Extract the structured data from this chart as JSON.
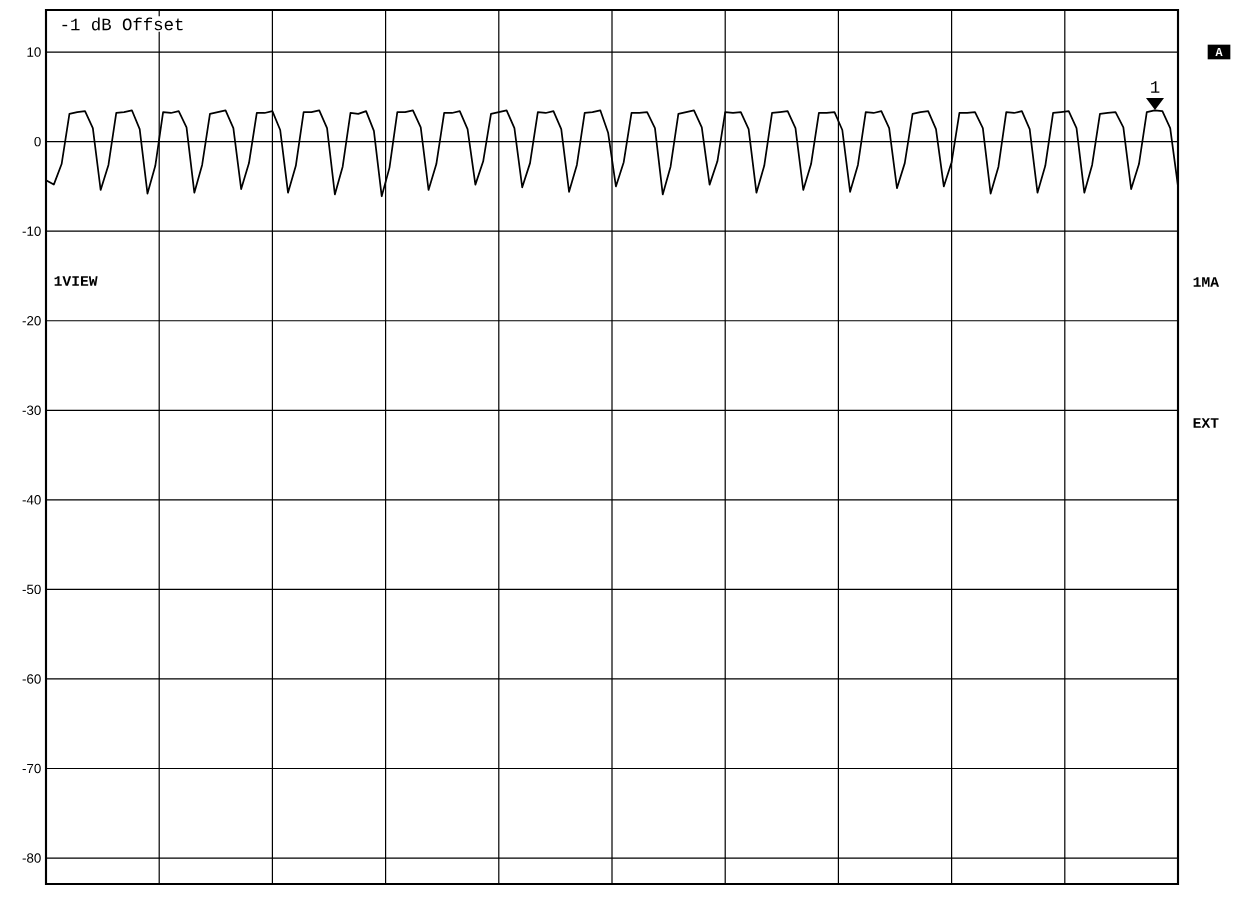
{
  "chart_data": {
    "type": "line",
    "categories": [
      null,
      null,
      null,
      null,
      null,
      null,
      null,
      null,
      null,
      null,
      null,
      null,
      null,
      null,
      null,
      null,
      null,
      null,
      null,
      null,
      null,
      null,
      null,
      null,
      null,
      null,
      null,
      null,
      null,
      null,
      null,
      null,
      null,
      null,
      null,
      null,
      null,
      null,
      null,
      null,
      null,
      null,
      null,
      null,
      null,
      null,
      null,
      null,
      null,
      null,
      null,
      null,
      null,
      null,
      null,
      null,
      null,
      null,
      null,
      null,
      null,
      null,
      null,
      null,
      null,
      null,
      null,
      null,
      null,
      null,
      null,
      null,
      null,
      null,
      null,
      null,
      null,
      null,
      null,
      null,
      null,
      null,
      null,
      null,
      null,
      null,
      null,
      null,
      null,
      null,
      null,
      null,
      null,
      null,
      null,
      null,
      null,
      null,
      null,
      null,
      null,
      null,
      null,
      null,
      null,
      null,
      null,
      null,
      null,
      null,
      null,
      null,
      null,
      null,
      null,
      null,
      null,
      null,
      null,
      null,
      null,
      null,
      null,
      null,
      null,
      null,
      null,
      null,
      null,
      null,
      null,
      null,
      null,
      null,
      null,
      null,
      null,
      null,
      null,
      null,
      null,
      null,
      null,
      null,
      null,
      null
    ],
    "values": [
      -4.3,
      -4.8,
      -2.5,
      3.1,
      3.3,
      3.4,
      1.5,
      -5.4,
      -2.6,
      3.2,
      3.3,
      3.5,
      1.4,
      -5.8,
      -2.7,
      3.3,
      3.2,
      3.4,
      1.6,
      -5.7,
      -2.6,
      3.1,
      3.3,
      3.5,
      1.5,
      -5.3,
      -2.4,
      3.2,
      3.2,
      3.4,
      1.3,
      -5.7,
      -2.7,
      3.3,
      3.3,
      3.5,
      1.5,
      -5.9,
      -2.8,
      3.2,
      3.1,
      3.4,
      1.2,
      -6.1,
      -2.9,
      3.3,
      3.3,
      3.5,
      1.6,
      -5.4,
      -2.5,
      3.2,
      3.2,
      3.4,
      1.4,
      -4.8,
      -2.2,
      3.1,
      3.3,
      3.5,
      1.5,
      -5.1,
      -2.4,
      3.3,
      3.2,
      3.4,
      1.4,
      -5.6,
      -2.6,
      3.2,
      3.3,
      3.5,
      1.0,
      -5.0,
      -2.3,
      3.2,
      3.2,
      3.3,
      1.5,
      -5.9,
      -2.8,
      3.1,
      3.3,
      3.5,
      1.6,
      -4.8,
      -2.2,
      3.3,
      3.2,
      3.3,
      1.4,
      -5.7,
      -2.7,
      3.2,
      3.3,
      3.4,
      1.5,
      -5.4,
      -2.5,
      3.2,
      3.2,
      3.3,
      1.3,
      -5.6,
      -2.6,
      3.3,
      3.2,
      3.4,
      1.5,
      -5.2,
      -2.4,
      3.1,
      3.3,
      3.4,
      1.4,
      -5.0,
      -2.3,
      3.2,
      3.2,
      3.3,
      1.5,
      -5.8,
      -2.8,
      3.3,
      3.2,
      3.4,
      1.4,
      -5.7,
      -2.7,
      3.2,
      3.3,
      3.4,
      1.5,
      -5.7,
      -2.6,
      3.1,
      3.2,
      3.3,
      1.6,
      -5.3,
      -2.5,
      3.3,
      3.5,
      3.4,
      1.5,
      -5.0
    ],
    "color": "#000000",
    "ylim": [
      -82.9,
      14.7
    ],
    "yticks": [
      -80,
      -70,
      -60,
      -50,
      -40,
      -30,
      -20,
      -10,
      0,
      10
    ],
    "grid": true,
    "tick_labels": "y",
    "annotations": [
      "-1 dB Offset",
      "1VIEW",
      "A",
      "1MA",
      "EXT",
      "1"
    ]
  }
}
